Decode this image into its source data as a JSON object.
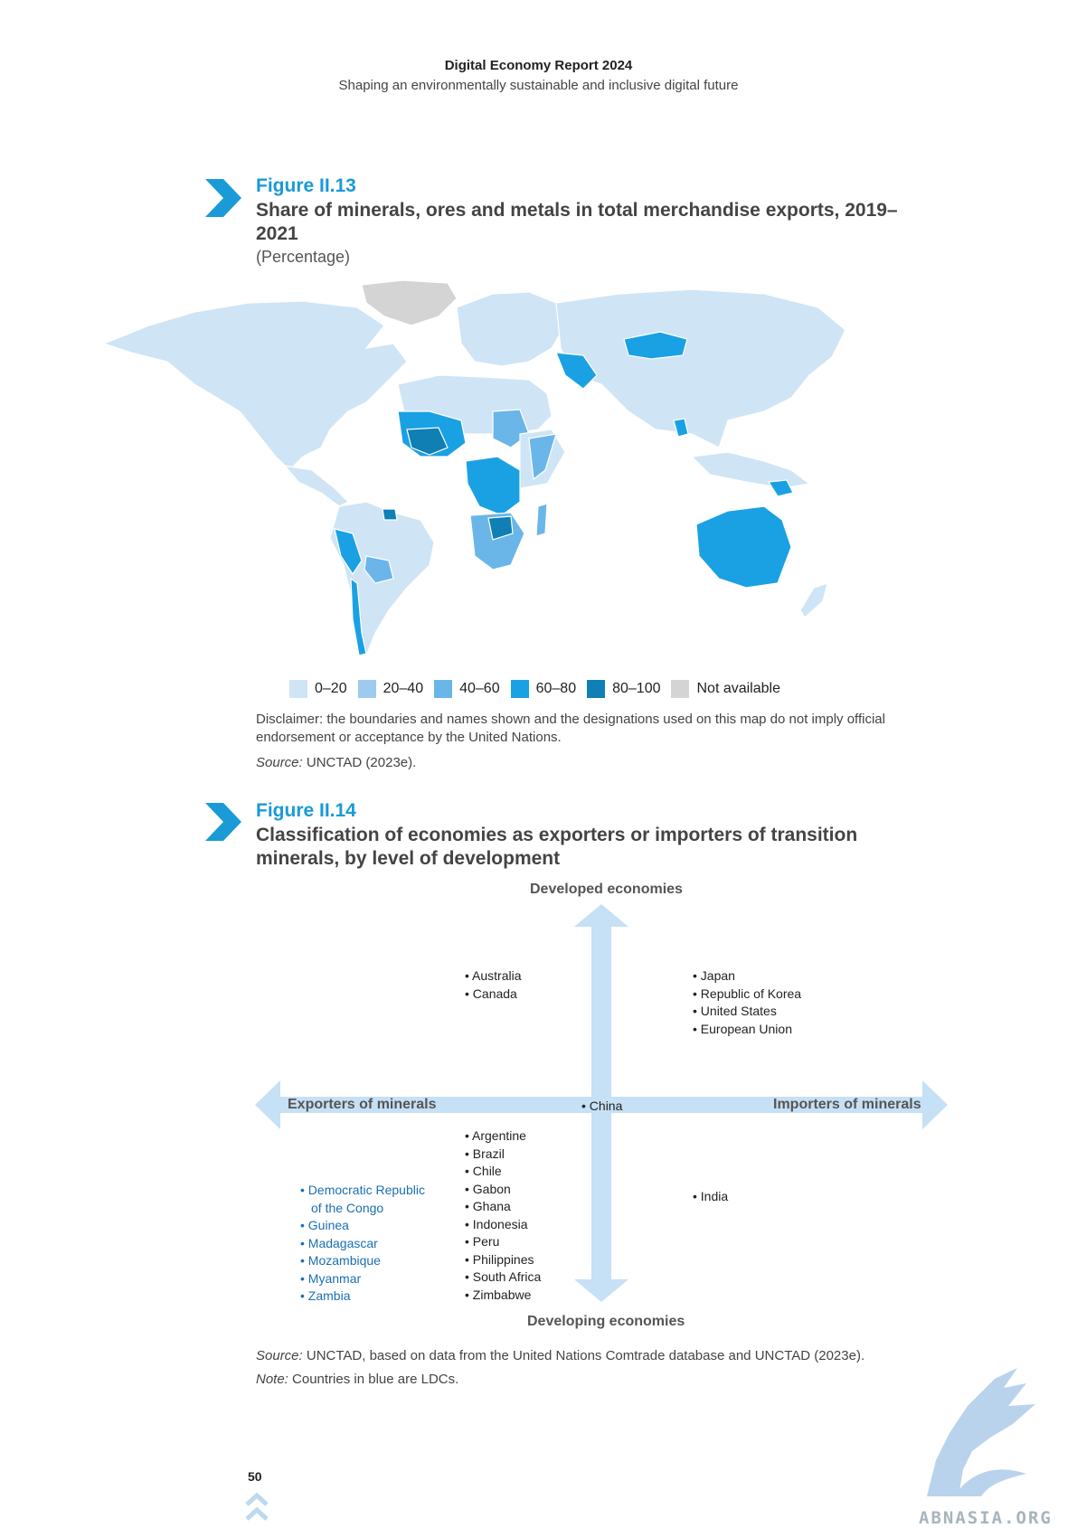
{
  "header": {
    "title": "Digital Economy Report 2024",
    "subtitle": "Shaping an environmentally sustainable and inclusive digital future"
  },
  "figure13": {
    "label": "Figure II.13",
    "title": "Share of minerals, ores and metals in total merchandise exports, 2019–2021",
    "unit": "(Percentage)",
    "legend": [
      {
        "label": "0–20",
        "color": "#cfe4f5"
      },
      {
        "label": "20–40",
        "color": "#9dcbef"
      },
      {
        "label": "40–60",
        "color": "#6ab6e9"
      },
      {
        "label": "60–80",
        "color": "#1aa1e4"
      },
      {
        "label": "80–100",
        "color": "#0f7fb4"
      },
      {
        "label": "Not available",
        "color": "#d4d4d4"
      }
    ],
    "disclaimer": "Disclaimer: the boundaries and names shown and the designations used on this map do not imply official endorsement or acceptance by the United Nations.",
    "source_label": "Source:",
    "source_text": " UNCTAD (2023e)."
  },
  "figure14": {
    "label": "Figure II.14",
    "title": "Classification of economies as exporters or importers of transition minerals, by level of development",
    "axis": {
      "top": "Developed economies",
      "bottom": "Developing economies",
      "left": "Exporters of minerals",
      "right": "Importers of minerals",
      "center": "• China"
    },
    "quadrants": {
      "developed_exporters": [
        "• Australia",
        "• Canada"
      ],
      "developed_importers": [
        "• Japan",
        "• Republic of Korea",
        "• United States",
        "• European Union"
      ],
      "developing_exporters": [
        "• Argentine",
        "• Brazil",
        "• Chile",
        "• Gabon",
        "• Ghana",
        "• Indonesia",
        "• Peru",
        "• Philippines",
        "• South Africa",
        "• Zimbabwe"
      ],
      "ldc_exporters": [
        "• Democratic Republic",
        "of the Congo",
        "• Guinea",
        "• Madagascar",
        "• Mozambique",
        "• Myanmar",
        "• Zambia"
      ],
      "developing_importers": [
        "• India"
      ]
    },
    "source_label": "Source:",
    "source_text": " UNCTAD, based on data from the United Nations Comtrade database and UNCTAD (2023e).",
    "note_label": "Note:",
    "note_text": " Countries in blue are LDCs."
  },
  "footer": {
    "page_number": "50",
    "watermark": "ABNASIA.ORG"
  }
}
